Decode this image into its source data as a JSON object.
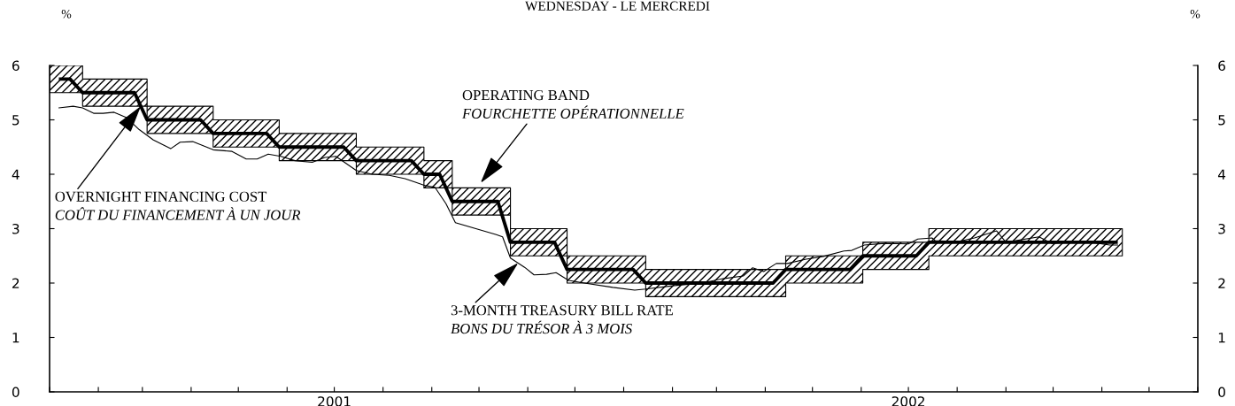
{
  "chart_data": {
    "type": "line",
    "title": "WEDNESDAY - LE MERCREDI",
    "ylabel": "%",
    "y2label": "%",
    "xlim": [
      "2001-01-01",
      "2003-01-01"
    ],
    "xticks": [
      {
        "value": "2001-01-01",
        "label": null
      },
      {
        "value": "2001-02-01",
        "label": null
      },
      {
        "value": "2001-03-01",
        "label": null
      },
      {
        "value": "2001-04-01",
        "label": null
      },
      {
        "value": "2001-05-01",
        "label": null
      },
      {
        "value": "2001-06-01",
        "label": null
      },
      {
        "value": "2001-07-01",
        "label": "2001"
      },
      {
        "value": "2001-08-01",
        "label": null
      },
      {
        "value": "2001-09-01",
        "label": null
      },
      {
        "value": "2001-10-01",
        "label": null
      },
      {
        "value": "2001-11-01",
        "label": null
      },
      {
        "value": "2001-12-01",
        "label": null
      },
      {
        "value": "2002-01-01",
        "label": null
      },
      {
        "value": "2002-02-01",
        "label": null
      },
      {
        "value": "2002-03-01",
        "label": null
      },
      {
        "value": "2002-04-01",
        "label": null
      },
      {
        "value": "2002-05-01",
        "label": null
      },
      {
        "value": "2002-06-01",
        "label": null
      },
      {
        "value": "2002-07-01",
        "label": "2002"
      },
      {
        "value": "2002-08-01",
        "label": null
      },
      {
        "value": "2002-09-01",
        "label": null
      },
      {
        "value": "2002-10-01",
        "label": null
      },
      {
        "value": "2002-11-01",
        "label": null
      },
      {
        "value": "2002-12-01",
        "label": null
      },
      {
        "value": "2003-01-01",
        "label": null
      }
    ],
    "ylim": [
      0,
      6
    ],
    "yticks": [
      0,
      1,
      2,
      3,
      4,
      5,
      6
    ],
    "y2lim": [
      0,
      6
    ],
    "y2ticks": [
      0,
      1,
      2,
      3,
      4,
      5,
      6
    ],
    "series": [
      {
        "color": "#000000",
        "x": [
          "2001-01-01",
          "2001-01-08",
          "2001-01-14",
          "2001-01-22",
          "2001-02-24",
          "2001-03-04",
          "2001-04-07",
          "2001-04-15",
          "2001-05-19",
          "2001-05-27",
          "2001-07-07",
          "2001-07-15",
          "2001-08-19",
          "2001-08-27",
          "2001-09-06",
          "2001-09-14",
          "2001-10-13",
          "2001-10-21",
          "2001-11-18",
          "2001-11-26",
          "2002-01-07",
          "2002-01-15",
          "2002-04-06",
          "2002-04-14",
          "2002-05-25",
          "2002-06-02",
          "2002-07-06",
          "2002-07-14",
          "2002-11-10",
          "2002-11-14"
        ],
        "values": [
          null,
          5.75,
          5.75,
          5.5,
          5.5,
          5.0,
          5.0,
          4.75,
          4.75,
          4.5,
          4.5,
          4.25,
          4.25,
          4.0,
          4.0,
          3.5,
          3.5,
          2.75,
          2.75,
          2.25,
          2.25,
          2.0,
          2.0,
          2.25,
          2.25,
          2.5,
          2.5,
          2.75,
          2.75,
          null
        ],
        "lower": [
          5.5,
          5.5,
          5.5,
          5.25,
          5.25,
          4.75,
          4.75,
          4.5,
          4.5,
          4.25,
          4.25,
          4.0,
          4.0,
          3.75,
          3.75,
          3.25,
          3.25,
          2.5,
          2.5,
          2.0,
          2.0,
          1.75,
          1.75,
          2.0,
          2.0,
          2.25,
          2.25,
          2.5,
          2.5,
          2.5
        ],
        "upper": [
          6.0,
          6.0,
          6.0,
          5.75,
          5.75,
          5.25,
          5.25,
          5.0,
          5.0,
          4.75,
          4.75,
          4.5,
          4.5,
          4.25,
          4.25,
          3.75,
          3.75,
          3.0,
          3.0,
          2.5,
          2.5,
          2.25,
          2.25,
          2.5,
          2.5,
          2.75,
          2.75,
          3.0,
          3.0,
          3.0
        ]
      },
      {
        "color": "#000000",
        "x": [
          "2001-01-07",
          "2001-01-16",
          "2001-01-22",
          "2001-01-29",
          "2001-02-04",
          "2001-02-11",
          "2001-02-19",
          "2001-02-27",
          "2001-03-08",
          "2001-03-19",
          "2001-03-25",
          "2001-04-02",
          "2001-04-15",
          "2001-04-27",
          "2001-05-06",
          "2001-05-13",
          "2001-05-20",
          "2001-05-28",
          "2001-06-06",
          "2001-06-17",
          "2001-06-25",
          "2001-07-02",
          "2001-07-15",
          "2001-07-25",
          "2001-08-05",
          "2001-08-15",
          "2001-08-22",
          "2001-08-28",
          "2001-09-03",
          "2001-09-10",
          "2001-09-16",
          "2001-09-29",
          "2001-10-12",
          "2001-10-16",
          "2001-10-21",
          "2001-10-30",
          "2001-11-05",
          "2001-11-13",
          "2001-11-19",
          "2001-11-27",
          "2001-12-07",
          "2001-12-25",
          "2002-01-08",
          "2002-01-15",
          "2002-02-01",
          "2002-02-20",
          "2002-03-05",
          "2002-03-18",
          "2002-03-24",
          "2002-03-31",
          "2002-04-08",
          "2002-04-15",
          "2002-04-27",
          "2002-05-08",
          "2002-05-21",
          "2002-05-26",
          "2002-06-03",
          "2002-06-16",
          "2002-07-01",
          "2002-07-07",
          "2002-07-16",
          "2002-07-18",
          "2002-08-01",
          "2002-08-12",
          "2002-08-26",
          "2002-09-01",
          "2002-09-22",
          "2002-09-30",
          "2002-10-16",
          "2002-10-25",
          "2002-11-06",
          "2002-11-11"
        ],
        "values": [
          5.22,
          5.25,
          5.22,
          5.12,
          5.12,
          5.14,
          5.04,
          4.82,
          4.63,
          4.47,
          4.59,
          4.6,
          4.45,
          4.42,
          4.28,
          4.28,
          4.37,
          4.33,
          4.25,
          4.22,
          4.31,
          4.33,
          4.07,
          4.0,
          3.98,
          3.92,
          3.85,
          3.79,
          3.76,
          3.46,
          3.11,
          3.0,
          2.89,
          2.85,
          2.46,
          2.29,
          2.15,
          2.16,
          2.19,
          2.05,
          2.0,
          1.92,
          1.87,
          1.89,
          1.95,
          2.0,
          2.08,
          2.13,
          2.28,
          2.21,
          2.36,
          2.36,
          2.44,
          2.49,
          2.59,
          2.6,
          2.7,
          2.73,
          2.72,
          2.81,
          2.83,
          2.78,
          2.76,
          2.83,
          2.96,
          2.75,
          2.85,
          2.73,
          2.76,
          2.75,
          2.7,
          2.7
        ]
      }
    ],
    "annotations": [
      {
        "text": "OVERNIGHT FINANCING COST\nCOÛT DU FINANCEMENT À UN JOUR",
        "x": "2001-02-28",
        "y": 5.25
      },
      {
        "text": "OPERATING BAND\nFOURCHETTE OPÉRATIONNELLE",
        "x": "2001-10-02",
        "y": 3.84
      },
      {
        "text": "3-MONTH TREASURY BILL RATE\nBONS DU TRÉSOR À 3 MOIS",
        "x": "2001-10-26",
        "y": 2.37
      }
    ]
  }
}
